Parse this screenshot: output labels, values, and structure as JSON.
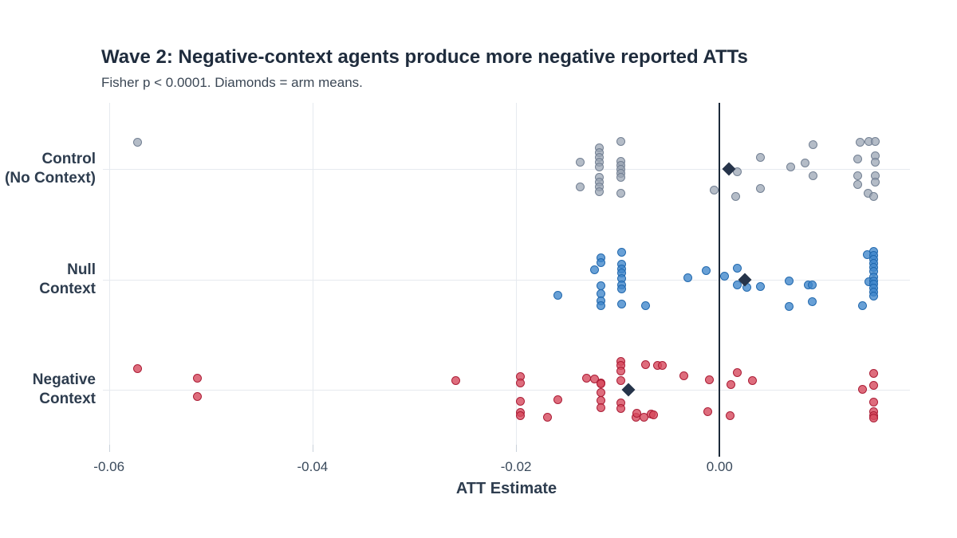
{
  "chart_data": {
    "type": "scatter",
    "title": "Wave 2: Negative-context agents produce more negative reported ATTs",
    "subtitle": "Fisher p < 0.0001. Diamonds = arm means.",
    "xlabel": "ATT Estimate",
    "ylabel": "",
    "xlim": [
      -0.0606,
      0.0187
    ],
    "x_ticks": [
      -0.06,
      -0.04,
      -0.02,
      0.0
    ],
    "x_tick_labels": [
      "-0.06",
      "-0.04",
      "-0.02",
      "0.00"
    ],
    "zero_reference_line": 0.0,
    "grid": true,
    "legend": "none",
    "note": "Diamonds = arm means",
    "arms": [
      {
        "name": "Control (No Context)",
        "label_lines": [
          "Control",
          "(No Context)"
        ],
        "fill": "rgba(151,162,178,0.72)",
        "stroke": "rgba(105,119,139,0.85)",
        "mean": 0.0009,
        "points": [
          [
            -0.0572,
            -34
          ],
          [
            -0.0137,
            -9
          ],
          [
            -0.0137,
            22
          ],
          [
            -0.0118,
            -27
          ],
          [
            -0.0118,
            -21
          ],
          [
            -0.0118,
            -15
          ],
          [
            -0.0118,
            -9
          ],
          [
            -0.0118,
            -3
          ],
          [
            -0.0118,
            10
          ],
          [
            -0.0118,
            16
          ],
          [
            -0.0118,
            22
          ],
          [
            -0.0118,
            28
          ],
          [
            -0.0097,
            -35
          ],
          [
            -0.0097,
            -10
          ],
          [
            -0.0097,
            -5
          ],
          [
            -0.0097,
            0
          ],
          [
            -0.0097,
            5
          ],
          [
            -0.0097,
            10
          ],
          [
            -0.0097,
            30
          ],
          [
            -0.0005,
            26
          ],
          [
            0.0017,
            3
          ],
          [
            0.0016,
            34
          ],
          [
            0.004,
            -15
          ],
          [
            0.004,
            24
          ],
          [
            0.007,
            -3
          ],
          [
            0.0084,
            -8
          ],
          [
            0.0092,
            -31
          ],
          [
            0.0092,
            8
          ],
          [
            0.0138,
            -34
          ],
          [
            0.0147,
            -35
          ],
          [
            0.0153,
            -35
          ],
          [
            0.0136,
            -13
          ],
          [
            0.0153,
            -17
          ],
          [
            0.0153,
            -9
          ],
          [
            0.0136,
            8
          ],
          [
            0.0136,
            19
          ],
          [
            0.0153,
            8
          ],
          [
            0.0153,
            16
          ],
          [
            0.0146,
            30
          ],
          [
            0.0151,
            34
          ]
        ]
      },
      {
        "name": "Null Context",
        "label_lines": [
          "Null",
          "Context"
        ],
        "fill": "rgba(62,133,203,0.78)",
        "stroke": "rgba(28,100,170,0.9)",
        "mean": 0.0025,
        "points": [
          [
            -0.0159,
            19
          ],
          [
            -0.0123,
            -13
          ],
          [
            -0.0117,
            -28
          ],
          [
            -0.0117,
            -22
          ],
          [
            -0.0117,
            7
          ],
          [
            -0.0117,
            17
          ],
          [
            -0.0117,
            26
          ],
          [
            -0.0117,
            32
          ],
          [
            -0.0096,
            -35
          ],
          [
            -0.0096,
            -20
          ],
          [
            -0.0096,
            -14
          ],
          [
            -0.0096,
            -9
          ],
          [
            -0.0096,
            -2
          ],
          [
            -0.0096,
            6
          ],
          [
            -0.0096,
            11
          ],
          [
            -0.0096,
            30
          ],
          [
            -0.0073,
            32
          ],
          [
            -0.0031,
            -3
          ],
          [
            -0.0013,
            -12
          ],
          [
            0.0005,
            -5
          ],
          [
            0.0017,
            -15
          ],
          [
            0.0017,
            6
          ],
          [
            0.0027,
            9
          ],
          [
            0.004,
            8
          ],
          [
            0.0068,
            1
          ],
          [
            0.0068,
            33
          ],
          [
            0.0087,
            6
          ],
          [
            0.0091,
            6
          ],
          [
            0.0091,
            27
          ],
          [
            0.014,
            32
          ],
          [
            0.0145,
            -32
          ],
          [
            0.0147,
            2
          ],
          [
            0.0151,
            -36
          ],
          [
            0.0151,
            -31
          ],
          [
            0.0151,
            -26
          ],
          [
            0.0151,
            -21
          ],
          [
            0.0151,
            -16
          ],
          [
            0.0151,
            -11
          ],
          [
            0.0151,
            -4
          ],
          [
            0.0151,
            1
          ],
          [
            0.0151,
            5
          ],
          [
            0.0151,
            10
          ],
          [
            0.0151,
            15
          ],
          [
            0.0151,
            20
          ]
        ]
      },
      {
        "name": "Negative Context",
        "label_lines": [
          "Negative",
          "Context"
        ],
        "fill": "rgba(214,72,93,0.8)",
        "stroke": "rgba(166,22,48,0.9)",
        "mean": -0.009,
        "points": [
          [
            -0.0572,
            -27
          ],
          [
            -0.0513,
            -15
          ],
          [
            -0.0513,
            8
          ],
          [
            -0.0259,
            -12
          ],
          [
            -0.0196,
            -17
          ],
          [
            -0.0196,
            -9
          ],
          [
            -0.0196,
            14
          ],
          [
            -0.0196,
            28
          ],
          [
            -0.0196,
            32
          ],
          [
            -0.0169,
            34
          ],
          [
            -0.0159,
            12
          ],
          [
            -0.0131,
            -15
          ],
          [
            -0.0123,
            -14
          ],
          [
            -0.0117,
            -9
          ],
          [
            -0.0117,
            -8
          ],
          [
            -0.0117,
            3
          ],
          [
            -0.0117,
            13
          ],
          [
            -0.0117,
            22
          ],
          [
            -0.0097,
            -36
          ],
          [
            -0.0097,
            -31
          ],
          [
            -0.0097,
            -24
          ],
          [
            -0.0097,
            -12
          ],
          [
            -0.0097,
            16
          ],
          [
            -0.0097,
            23
          ],
          [
            -0.0082,
            34
          ],
          [
            -0.0081,
            29
          ],
          [
            -0.0074,
            34
          ],
          [
            -0.0067,
            30
          ],
          [
            -0.0065,
            31
          ],
          [
            -0.0073,
            -32
          ],
          [
            -0.0061,
            -31
          ],
          [
            -0.0056,
            -31
          ],
          [
            -0.0035,
            -18
          ],
          [
            -0.0012,
            27
          ],
          [
            -0.001,
            -13
          ],
          [
            0.001,
            32
          ],
          [
            0.0011,
            -7
          ],
          [
            0.0017,
            -22
          ],
          [
            0.0032,
            -12
          ],
          [
            0.014,
            -1
          ],
          [
            0.0151,
            -21
          ],
          [
            0.0151,
            -6
          ],
          [
            0.0151,
            15
          ],
          [
            0.0151,
            27
          ],
          [
            0.0151,
            32
          ],
          [
            0.0151,
            35
          ]
        ]
      }
    ]
  },
  "colors": {
    "background": "#ffffff",
    "title_text": "#1f2c3d",
    "subtitle_text": "#3b4755",
    "axis_text": "#2e3d4f",
    "tick_text": "#3a4a5c",
    "gridline": "#e6eaef",
    "tick_mark": "#c9d1da",
    "zero_line": "#1c2a3a",
    "mean_diamond": "#26344a"
  }
}
